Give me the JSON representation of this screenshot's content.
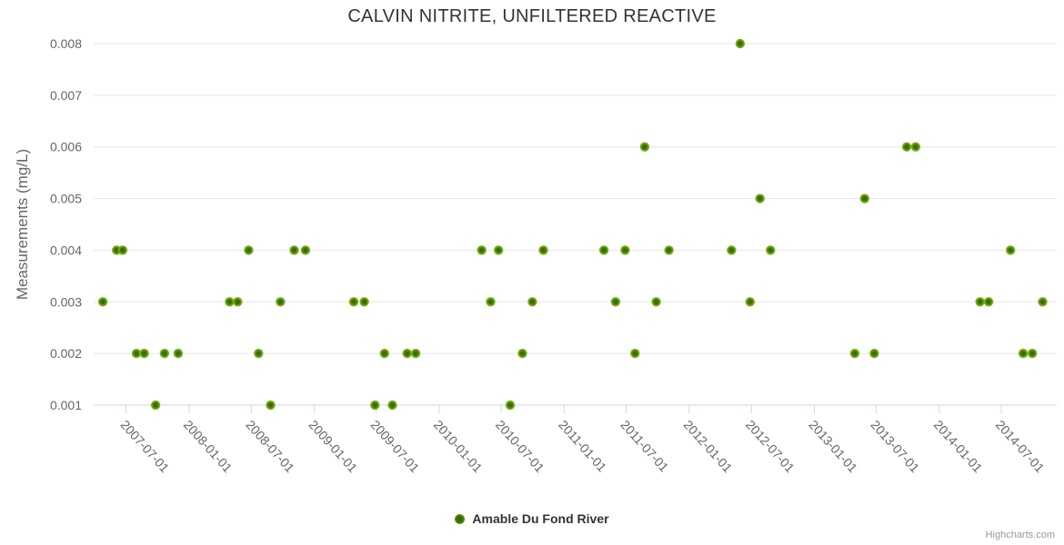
{
  "chart_data": {
    "type": "scatter",
    "title": "CALVIN NITRITE, UNFILTERED REACTIVE",
    "xlabel": "",
    "ylabel": "Measurements (mg/L)",
    "ylim": [
      0.001,
      0.008
    ],
    "yticks": [
      0.001,
      0.002,
      0.003,
      0.004,
      0.005,
      0.006,
      0.007,
      0.008
    ],
    "xticks": [
      "2007-07-01",
      "2008-01-01",
      "2008-07-01",
      "2009-01-01",
      "2009-07-01",
      "2010-01-01",
      "2010-07-01",
      "2011-01-01",
      "2011-07-01",
      "2012-01-01",
      "2012-07-01",
      "2013-01-01",
      "2013-07-01",
      "2014-01-01",
      "2014-07-01"
    ],
    "grid": true,
    "legend_position": "bottom-center",
    "series": [
      {
        "name": "Amable Du Fond River",
        "points": [
          {
            "x": "2007-04-24",
            "y": 0.003
          },
          {
            "x": "2007-06-03",
            "y": 0.004
          },
          {
            "x": "2007-06-21",
            "y": 0.004
          },
          {
            "x": "2007-07-31",
            "y": 0.002
          },
          {
            "x": "2007-08-23",
            "y": 0.002
          },
          {
            "x": "2007-09-25",
            "y": 0.001
          },
          {
            "x": "2007-10-21",
            "y": 0.002
          },
          {
            "x": "2007-11-30",
            "y": 0.002
          },
          {
            "x": "2008-04-28",
            "y": 0.003
          },
          {
            "x": "2008-05-22",
            "y": 0.003
          },
          {
            "x": "2008-06-23",
            "y": 0.004
          },
          {
            "x": "2008-07-22",
            "y": 0.002
          },
          {
            "x": "2008-08-26",
            "y": 0.001
          },
          {
            "x": "2008-09-24",
            "y": 0.003
          },
          {
            "x": "2008-11-03",
            "y": 0.004
          },
          {
            "x": "2008-12-06",
            "y": 0.004
          },
          {
            "x": "2009-04-26",
            "y": 0.003
          },
          {
            "x": "2009-05-27",
            "y": 0.003
          },
          {
            "x": "2009-06-27",
            "y": 0.001
          },
          {
            "x": "2009-07-25",
            "y": 0.002
          },
          {
            "x": "2009-08-17",
            "y": 0.001
          },
          {
            "x": "2009-09-29",
            "y": 0.002
          },
          {
            "x": "2009-10-24",
            "y": 0.002
          },
          {
            "x": "2010-05-05",
            "y": 0.004
          },
          {
            "x": "2010-05-31",
            "y": 0.003
          },
          {
            "x": "2010-06-23",
            "y": 0.004
          },
          {
            "x": "2010-07-27",
            "y": 0.001
          },
          {
            "x": "2010-09-01",
            "y": 0.002
          },
          {
            "x": "2010-09-30",
            "y": 0.003
          },
          {
            "x": "2010-11-01",
            "y": 0.004
          },
          {
            "x": "2011-04-27",
            "y": 0.004
          },
          {
            "x": "2011-05-31",
            "y": 0.003
          },
          {
            "x": "2011-06-28",
            "y": 0.004
          },
          {
            "x": "2011-07-27",
            "y": 0.002
          },
          {
            "x": "2011-08-24",
            "y": 0.006
          },
          {
            "x": "2011-09-27",
            "y": 0.003
          },
          {
            "x": "2011-11-03",
            "y": 0.004
          },
          {
            "x": "2012-05-04",
            "y": 0.004
          },
          {
            "x": "2012-05-29",
            "y": 0.008
          },
          {
            "x": "2012-06-27",
            "y": 0.003
          },
          {
            "x": "2012-07-26",
            "y": 0.005
          },
          {
            "x": "2012-08-26",
            "y": 0.004
          },
          {
            "x": "2013-04-29",
            "y": 0.002
          },
          {
            "x": "2013-05-28",
            "y": 0.005
          },
          {
            "x": "2013-06-25",
            "y": 0.002
          },
          {
            "x": "2013-09-28",
            "y": 0.006
          },
          {
            "x": "2013-10-24",
            "y": 0.006
          },
          {
            "x": "2014-04-30",
            "y": 0.003
          },
          {
            "x": "2014-05-25",
            "y": 0.003
          },
          {
            "x": "2014-07-28",
            "y": 0.004
          },
          {
            "x": "2014-09-03",
            "y": 0.002
          },
          {
            "x": "2014-09-30",
            "y": 0.002
          },
          {
            "x": "2014-10-30",
            "y": 0.003
          }
        ]
      }
    ]
  },
  "legend": {
    "label": "Amable Du Fond River"
  },
  "credit": {
    "text": "Highcharts.com"
  },
  "colors": {
    "marker_edge": "#7cb91b",
    "marker_core": "#3c6806",
    "grid": "#e6e6e6",
    "axis_line": "#ccd6eb",
    "tick_label": "#666666",
    "axis_title": "#666666",
    "title": "#333333",
    "credit": "#999999"
  }
}
